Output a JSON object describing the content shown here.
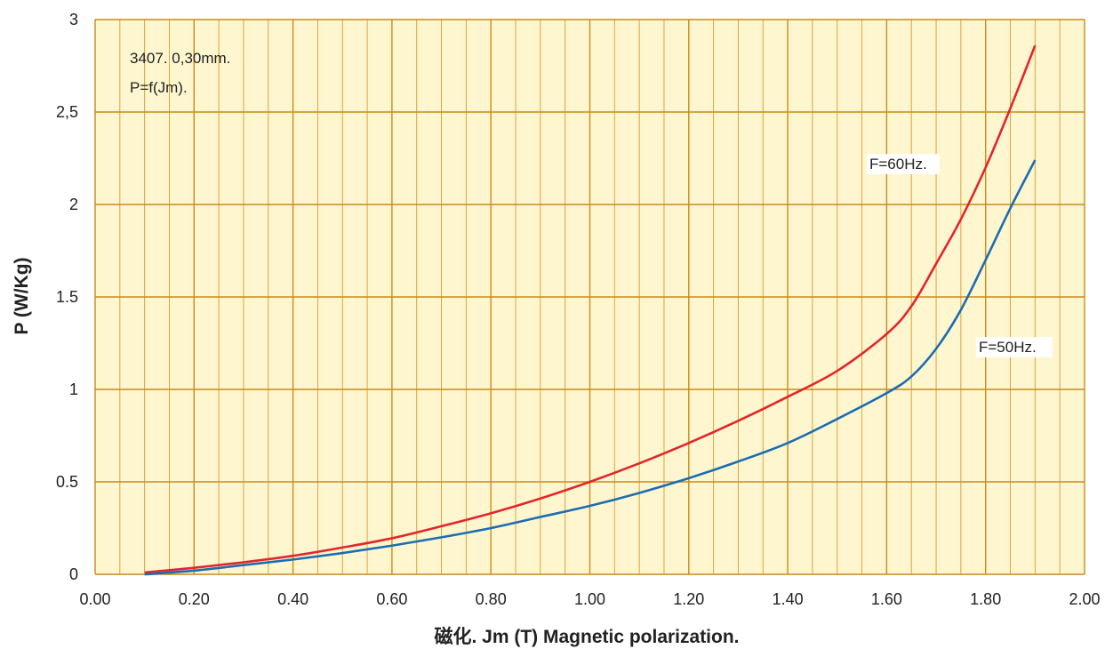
{
  "chart_data": {
    "type": "line",
    "title": "",
    "xlabel": "磁化. Jm (T) Magnetic polarization.",
    "ylabel": "P (W/Kg)",
    "xlim": [
      0,
      2
    ],
    "ylim": [
      0,
      3
    ],
    "grid": true,
    "x_ticks": [
      {
        "value": 0.0,
        "label": "0.00"
      },
      {
        "value": 0.2,
        "label": "0.20"
      },
      {
        "value": 0.4,
        "label": "0.40"
      },
      {
        "value": 0.6,
        "label": "0.60"
      },
      {
        "value": 0.8,
        "label": "0.80"
      },
      {
        "value": 1.0,
        "label": "1.00"
      },
      {
        "value": 1.2,
        "label": "1.20"
      },
      {
        "value": 1.4,
        "label": "1.40"
      },
      {
        "value": 1.6,
        "label": "1.60"
      },
      {
        "value": 1.8,
        "label": "1.80"
      },
      {
        "value": 2.0,
        "label": "2.00"
      }
    ],
    "y_ticks": [
      {
        "value": 0,
        "label": "0"
      },
      {
        "value": 0.5,
        "label": "0.5"
      },
      {
        "value": 1,
        "label": "1"
      },
      {
        "value": 1.5,
        "label": "1.5"
      },
      {
        "value": 2,
        "label": "2"
      },
      {
        "value": 2.5,
        "label": "2,5"
      },
      {
        "value": 3,
        "label": "3"
      }
    ],
    "annotations": [
      "3407.  0,30mm.",
      "P=f(Jm)."
    ],
    "series": [
      {
        "label": "F=60Hz.",
        "color": "#e3262b",
        "x": [
          0.1,
          0.2,
          0.3,
          0.4,
          0.5,
          0.6,
          0.7,
          0.8,
          0.9,
          1.0,
          1.1,
          1.2,
          1.3,
          1.4,
          1.5,
          1.6,
          1.65,
          1.7,
          1.75,
          1.8,
          1.85,
          1.9
        ],
        "y": [
          0.01,
          0.035,
          0.065,
          0.1,
          0.145,
          0.195,
          0.26,
          0.33,
          0.41,
          0.5,
          0.6,
          0.71,
          0.83,
          0.96,
          1.1,
          1.3,
          1.45,
          1.68,
          1.92,
          2.2,
          2.52,
          2.86
        ]
      },
      {
        "label": "F=50Hz.",
        "color": "#1b6db3",
        "x": [
          0.1,
          0.2,
          0.3,
          0.4,
          0.5,
          0.6,
          0.7,
          0.8,
          0.9,
          1.0,
          1.1,
          1.2,
          1.3,
          1.4,
          1.5,
          1.6,
          1.65,
          1.7,
          1.75,
          1.8,
          1.85,
          1.9
        ],
        "y": [
          0.0,
          0.02,
          0.05,
          0.08,
          0.115,
          0.155,
          0.2,
          0.25,
          0.31,
          0.37,
          0.44,
          0.52,
          0.61,
          0.71,
          0.84,
          0.98,
          1.07,
          1.22,
          1.43,
          1.7,
          1.98,
          2.24
        ]
      }
    ]
  }
}
